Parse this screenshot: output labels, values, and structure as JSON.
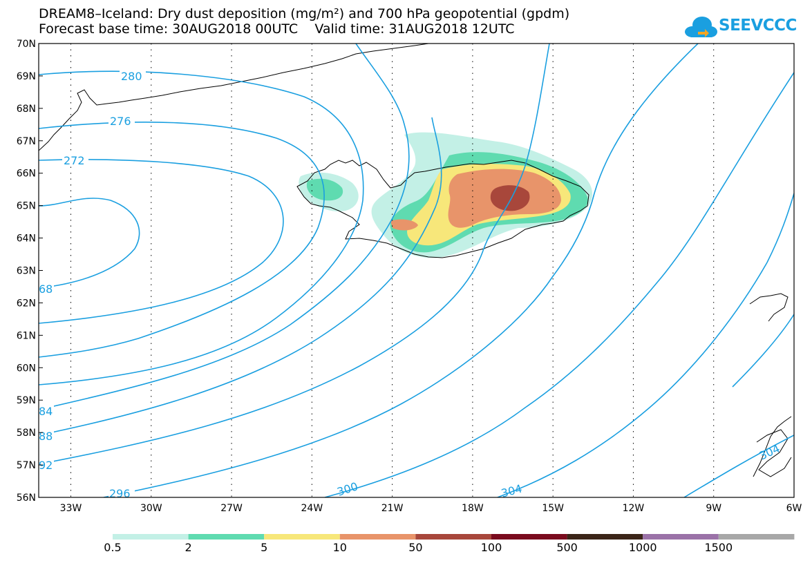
{
  "title": {
    "line1": "DREAM8–Iceland: Dry dust deposition (mg/m²) and 700 hPa geopotential (gpdm)",
    "line2": "Forecast base time: 30AUG2018 00UTC    Valid time: 31AUG2018 12UTC"
  },
  "logo": {
    "text": "SEEVCCC",
    "icon": "cloud-logo-icon",
    "color": "#1a9fe0"
  },
  "map": {
    "lat_labels": [
      "70N",
      "69N",
      "68N",
      "67N",
      "66N",
      "65N",
      "64N",
      "63N",
      "62N",
      "61N",
      "60N",
      "59N",
      "58N",
      "57N",
      "56N"
    ],
    "lon_labels": [
      "33W",
      "30W",
      "27W",
      "24W",
      "21W",
      "18W",
      "15W",
      "12W",
      "9W",
      "6W"
    ],
    "lat_range": [
      56,
      70
    ],
    "lon_range": [
      -34.2,
      -6
    ],
    "grid": "dotted",
    "contour_color": "#1a9fe0",
    "contour_labels": [
      "280",
      "276",
      "272",
      "68",
      "84",
      "88",
      "92",
      "296",
      "300",
      "304",
      "304"
    ]
  },
  "legend": {
    "colors": [
      "#c3f0e6",
      "#5fdbb0",
      "#f7e77a",
      "#e8946a",
      "#a8473b",
      "#7a0b1e",
      "#3b2518",
      "#9b72a8",
      "#a8a8a8"
    ],
    "labels": [
      "0.5",
      "2",
      "5",
      "10",
      "50",
      "100",
      "500",
      "1000",
      "1500"
    ]
  }
}
